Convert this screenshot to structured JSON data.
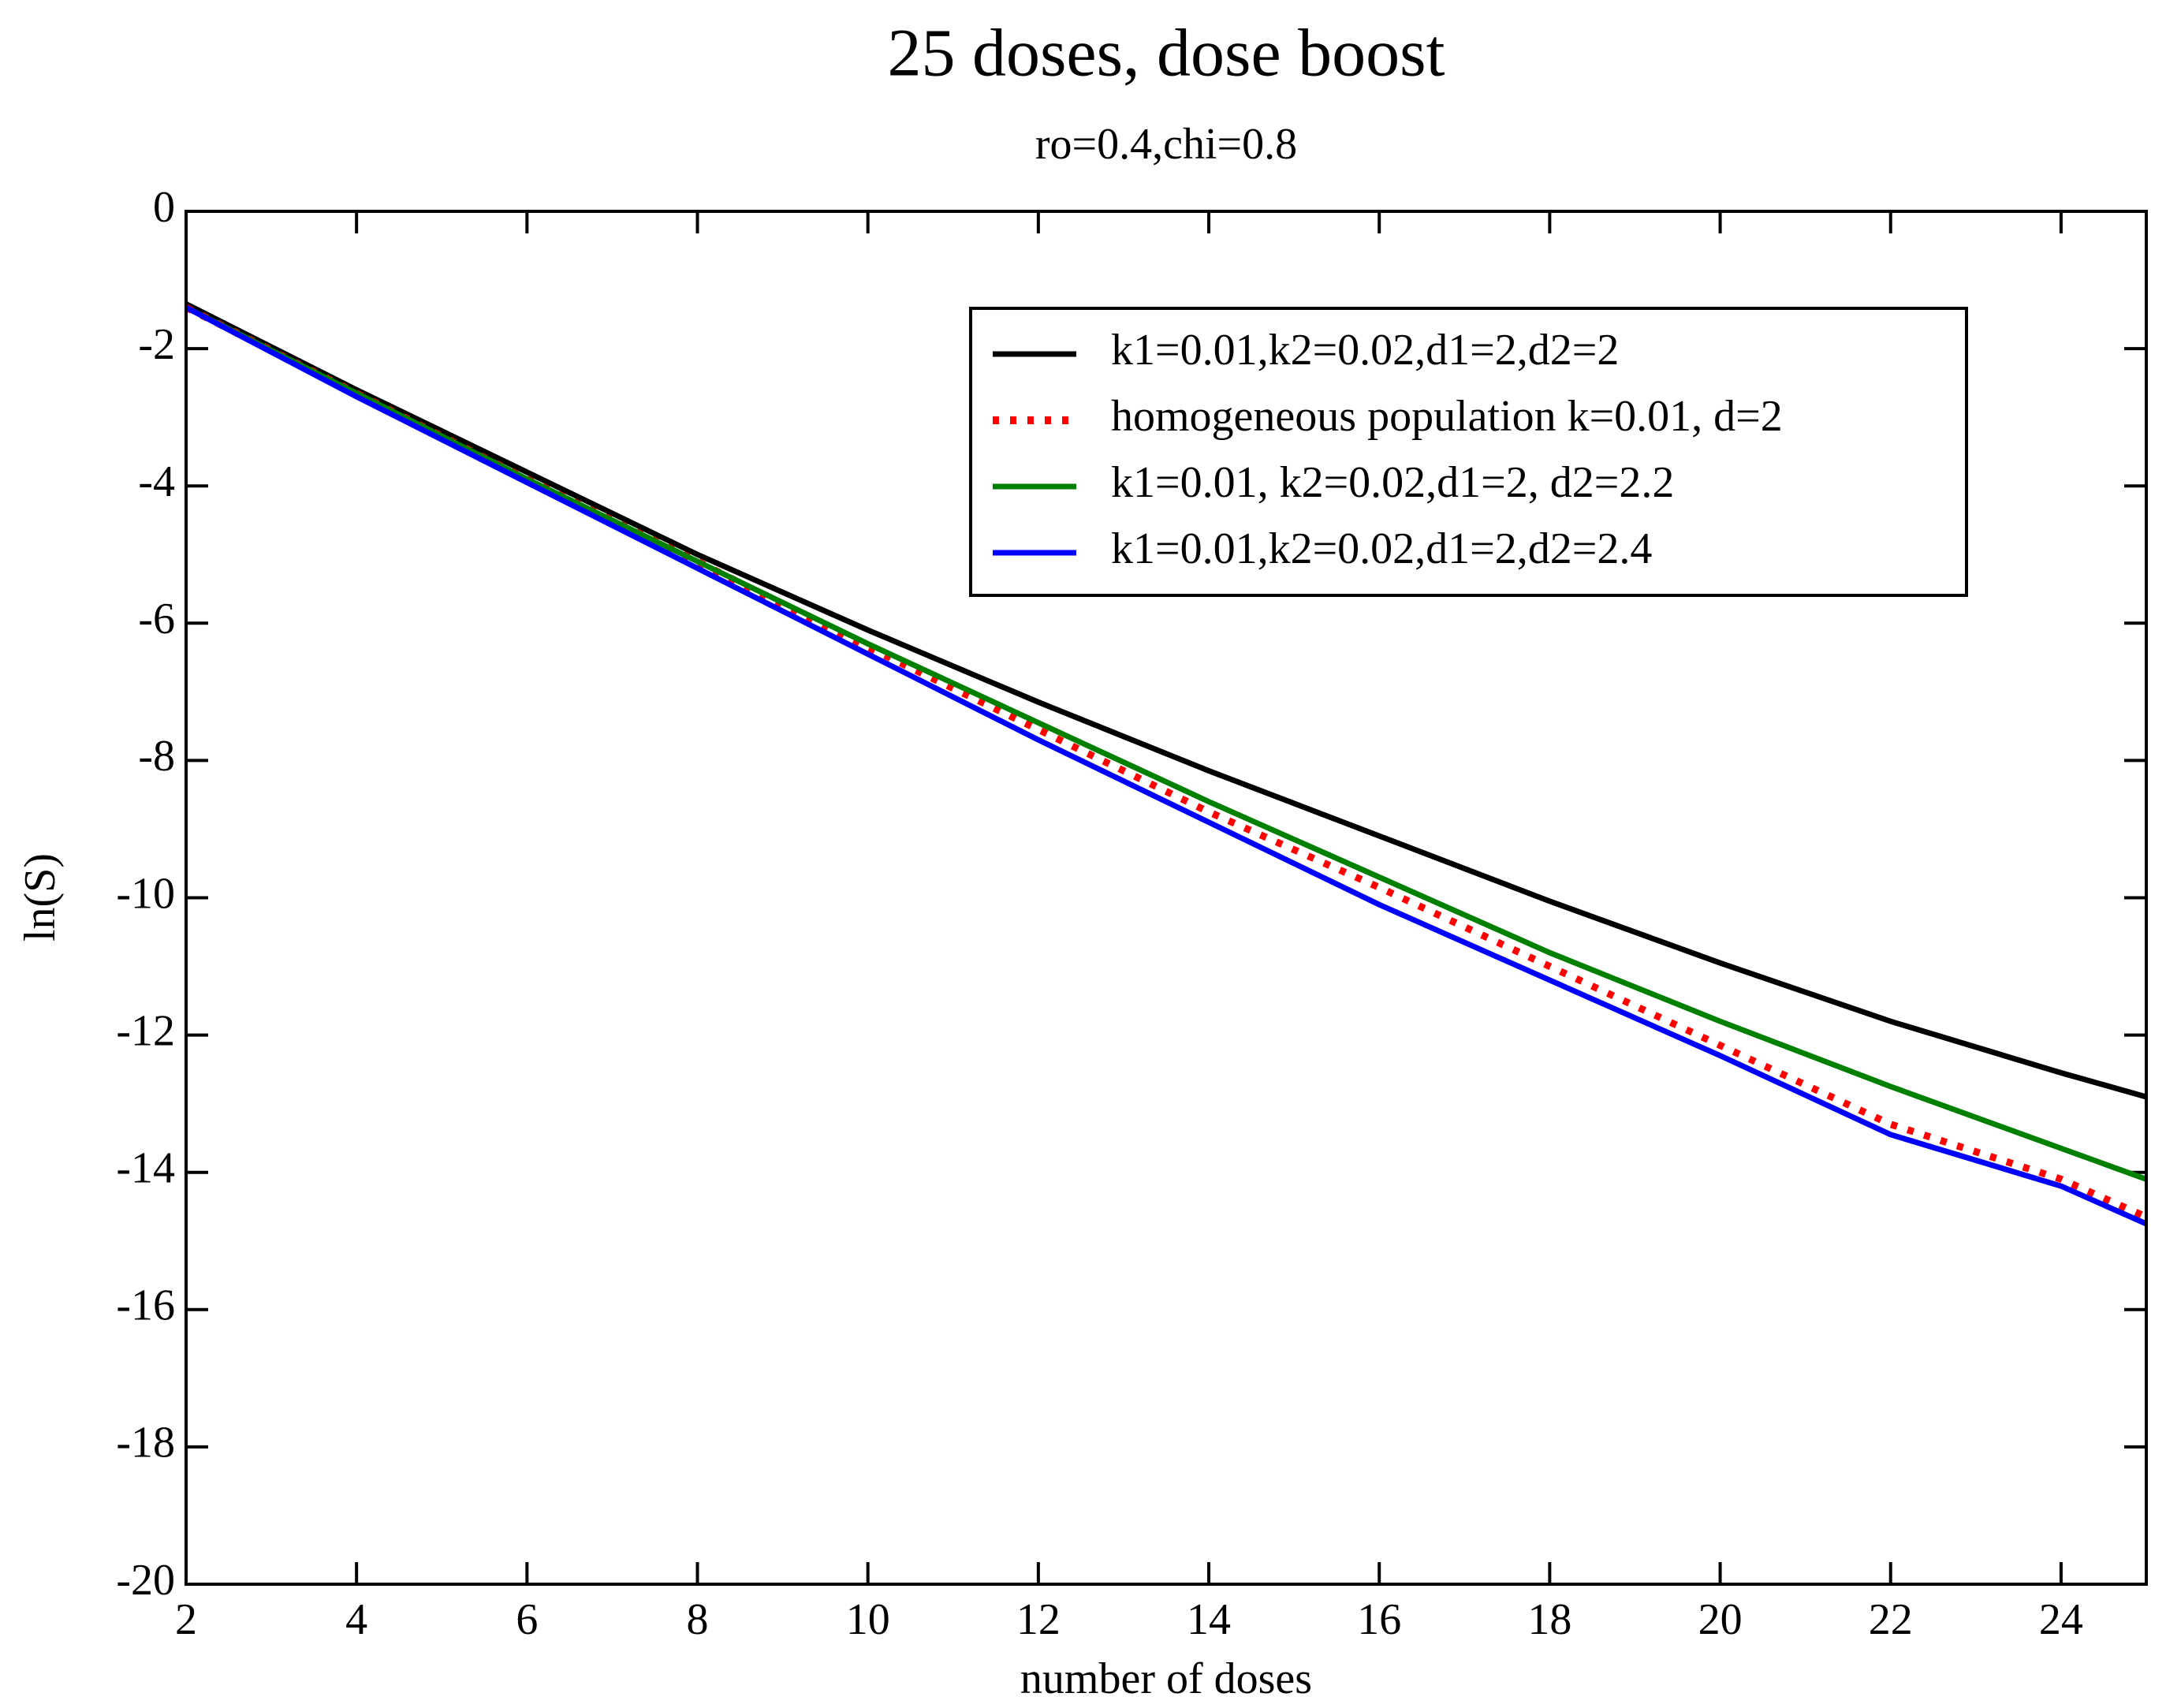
{
  "chart_data": {
    "type": "line",
    "title": "25 doses, dose boost",
    "subtitle": "ro=0.4,chi=0.8",
    "x_label": "number of doses",
    "y_label": "ln(S)",
    "x": [
      2,
      4,
      6,
      8,
      10,
      12,
      14,
      16,
      18,
      20,
      22,
      24,
      25
    ],
    "xlim": [
      2,
      25
    ],
    "ylim": [
      -20,
      0
    ],
    "xticks": [
      2,
      4,
      6,
      8,
      10,
      12,
      14,
      16,
      18,
      20,
      22,
      24
    ],
    "yticks": [
      -20,
      -18,
      -16,
      -14,
      -12,
      -10,
      -8,
      -6,
      -4,
      -2,
      0
    ],
    "legend": "upper right",
    "series": [
      {
        "name": "k1=0.01,k2=0.02,d1=2,d2=2",
        "color": "#000000",
        "style": "solid",
        "values": [
          -1.35,
          -2.6,
          -3.8,
          -5.0,
          -6.1,
          -7.15,
          -8.15,
          -9.1,
          -10.05,
          -10.95,
          -11.8,
          -12.55,
          -12.9
        ]
      },
      {
        "name": "homogeneous population k=0.01, d=2",
        "color": "#ff0000",
        "style": "dotted",
        "values": [
          -1.4,
          -2.65,
          -3.9,
          -5.1,
          -6.35,
          -7.55,
          -8.75,
          -9.85,
          -11.0,
          -12.15,
          -13.3,
          -14.1,
          -14.65
        ]
      },
      {
        "name": "k1=0.01, k2=0.02,d1=2, d2=2.2",
        "color": "#008000",
        "style": "solid",
        "values": [
          -1.4,
          -2.65,
          -3.9,
          -5.1,
          -6.3,
          -7.45,
          -8.6,
          -9.7,
          -10.8,
          -11.8,
          -12.75,
          -13.65,
          -14.1
        ]
      },
      {
        "name": "k1=0.01,k2=0.02,d1=2,d2=2.4",
        "color": "#0000ff",
        "style": "solid",
        "values": [
          -1.4,
          -2.7,
          -3.95,
          -5.2,
          -6.45,
          -7.7,
          -8.9,
          -10.1,
          -11.2,
          -12.3,
          -13.45,
          -14.2,
          -14.75
        ]
      }
    ]
  }
}
